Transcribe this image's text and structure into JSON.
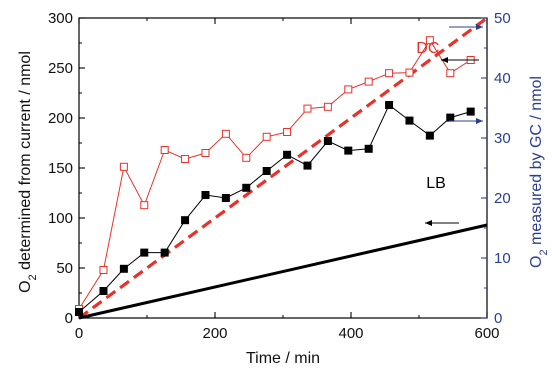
{
  "chart_data": {
    "type": "line",
    "xlabel": "Time / min",
    "ylabel_left_main": "O",
    "ylabel_left_sub": "2",
    "ylabel_left_rest": " determined from current / nmol",
    "ylabel_right_main": "O",
    "ylabel_right_sub": "2",
    "ylabel_right_rest": " measured by GC / nmol",
    "xlim": [
      0,
      600
    ],
    "ylim_left": [
      0,
      300
    ],
    "ylim_right": [
      0,
      50
    ],
    "x_ticks": [
      0,
      200,
      400,
      600
    ],
    "y_ticks_left": [
      0,
      50,
      100,
      150,
      200,
      250,
      300
    ],
    "y_ticks_right": [
      0,
      10,
      20,
      30,
      40,
      50
    ],
    "colors": {
      "dc": "#e8312a",
      "lb": "#000000",
      "right_axis": "#2b3f8f"
    },
    "annotations": [
      {
        "text": "DC",
        "x": 513,
        "y": 265,
        "color": "#e8312a"
      },
      {
        "text": "LB",
        "x": 525,
        "y": 130,
        "color": "#000000"
      }
    ],
    "series": [
      {
        "name": "DC",
        "style": "dashed",
        "axis": "left",
        "color": "#e8312a",
        "x": [
          0,
          600
        ],
        "y": [
          0,
          300
        ]
      },
      {
        "name": "LB",
        "style": "solid",
        "axis": "left",
        "color": "#000000",
        "x": [
          0,
          600
        ],
        "y": [
          0,
          93
        ]
      },
      {
        "name": "DC",
        "style": "open-square",
        "axis": "right",
        "color": "#e8312a",
        "x": [
          0,
          36,
          66,
          96,
          126,
          156,
          186,
          216,
          246,
          276,
          306,
          336,
          366,
          396,
          426,
          456,
          486,
          516,
          546,
          576
        ],
        "y": [
          1.5,
          8,
          25.2,
          18.8,
          28,
          26.5,
          27.5,
          30.7,
          26.7,
          30.2,
          31,
          34.9,
          35.2,
          38.1,
          39.4,
          40.8,
          40.9,
          46.3,
          40.8,
          43
        ]
      },
      {
        "name": "LB",
        "style": "filled-square",
        "axis": "right",
        "color": "#000000",
        "x": [
          0,
          36,
          66,
          96,
          126,
          156,
          186,
          216,
          246,
          276,
          306,
          336,
          366,
          396,
          426,
          456,
          486,
          516,
          546,
          576
        ],
        "y": [
          1,
          4.5,
          8.2,
          10.9,
          10.9,
          16.3,
          20.5,
          20,
          21.7,
          24.5,
          27.2,
          25.4,
          29.5,
          27.9,
          28.2,
          35.5,
          32.9,
          30.4,
          33.4,
          34.4
        ]
      }
    ],
    "axis_arrows": [
      {
        "points_to": "right",
        "target": "DC",
        "y_left": 291
      },
      {
        "points_to": "left",
        "target": "DC",
        "y_left": 258
      },
      {
        "points_to": "right",
        "target": "DC",
        "y_left": 197
      },
      {
        "points_to": "left",
        "target": "LB",
        "y_left": 95
      }
    ]
  }
}
